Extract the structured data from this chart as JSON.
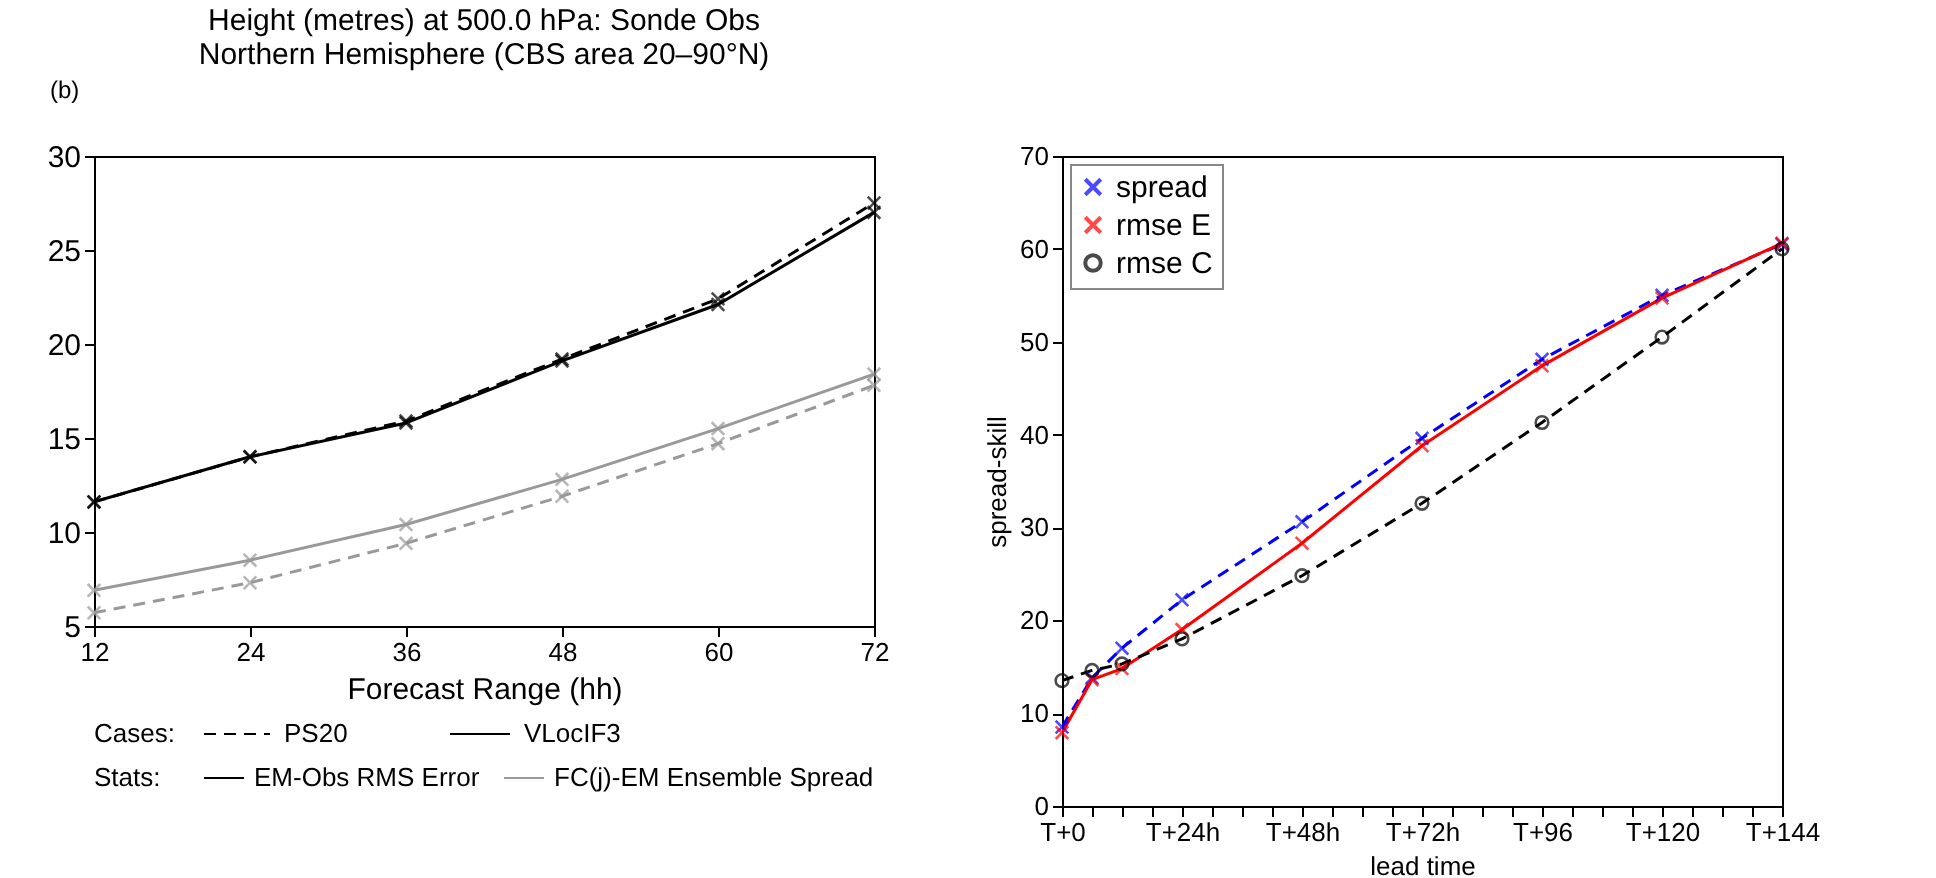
{
  "chart_data": [
    {
      "type": "line",
      "title": "Height (metres) at 500.0 hPa:  Sonde Obs\nNorthern Hemisphere (CBS area 20–90°N)",
      "xlabel": "Forecast Range (hh)",
      "x": [
        12,
        24,
        36,
        48,
        60,
        72
      ],
      "xlim": [
        12,
        72
      ],
      "xticks": [
        12,
        24,
        36,
        48,
        60,
        72
      ],
      "ylim": [
        5,
        30
      ],
      "yticks": [
        5,
        10,
        15,
        20,
        25,
        30
      ],
      "grid": false,
      "legend": false,
      "marker": "cross",
      "annotations": [
        "(b)",
        "Cases:",
        "PS20",
        "VLocIF3",
        "Stats:",
        "EM-Obs RMS Error",
        "FC(j)-EM Ensemble Spread"
      ],
      "series": [
        {
          "color": "#000000",
          "line_style": "dashed",
          "values": [
            11.6,
            14.0,
            15.9,
            19.2,
            22.4,
            27.5
          ]
        },
        {
          "color": "#000000",
          "line_style": "solid",
          "values": [
            11.6,
            14.0,
            15.8,
            19.1,
            22.1,
            27.0
          ]
        },
        {
          "color": "#999999",
          "line_style": "dashed",
          "values": [
            5.7,
            7.3,
            9.4,
            11.9,
            14.7,
            17.8
          ]
        },
        {
          "color": "#999999",
          "line_style": "solid",
          "values": [
            6.9,
            8.5,
            10.4,
            12.8,
            15.5,
            18.4
          ]
        }
      ]
    },
    {
      "type": "line",
      "xlabel": "lead time",
      "ylabel": "spread-skill",
      "categories": [
        "T+0",
        null,
        null,
        null,
        "T+24h",
        null,
        null,
        null,
        "T+48h",
        null,
        null,
        null,
        "T+72h",
        null,
        null,
        null,
        "T+96",
        null,
        null,
        null,
        "T+120",
        null,
        null,
        null,
        "T+144"
      ],
      "ylim": [
        0,
        70
      ],
      "yticks": [
        0,
        10,
        20,
        30,
        40,
        50,
        60,
        70
      ],
      "grid": false,
      "legend": "top left",
      "series": [
        {
          "name": "spread",
          "color": "#0000ff",
          "line_style": "dashed",
          "marker": "cross",
          "values": [
            8.5,
            13.8,
            17.0,
            null,
            22.2,
            null,
            null,
            null,
            30.6,
            null,
            null,
            null,
            39.6,
            null,
            null,
            null,
            48.1,
            null,
            null,
            null,
            55.0,
            null,
            null,
            null,
            60.5
          ]
        },
        {
          "name": "rmse E",
          "color": "#ff0000",
          "line_style": "solid",
          "marker": "cross",
          "values": [
            7.9,
            13.6,
            14.8,
            null,
            19.0,
            null,
            null,
            null,
            28.3,
            null,
            null,
            null,
            38.8,
            null,
            null,
            null,
            47.4,
            null,
            null,
            null,
            54.7,
            null,
            null,
            null,
            60.6
          ]
        },
        {
          "name": "rmse C",
          "color": "#000000",
          "line_style": "dashed",
          "marker": "circle",
          "values": [
            13.5,
            14.6,
            15.3,
            null,
            18.0,
            null,
            null,
            null,
            24.8,
            null,
            null,
            null,
            32.6,
            null,
            null,
            null,
            41.3,
            null,
            null,
            null,
            50.5,
            null,
            null,
            null,
            60.0
          ]
        }
      ]
    }
  ]
}
